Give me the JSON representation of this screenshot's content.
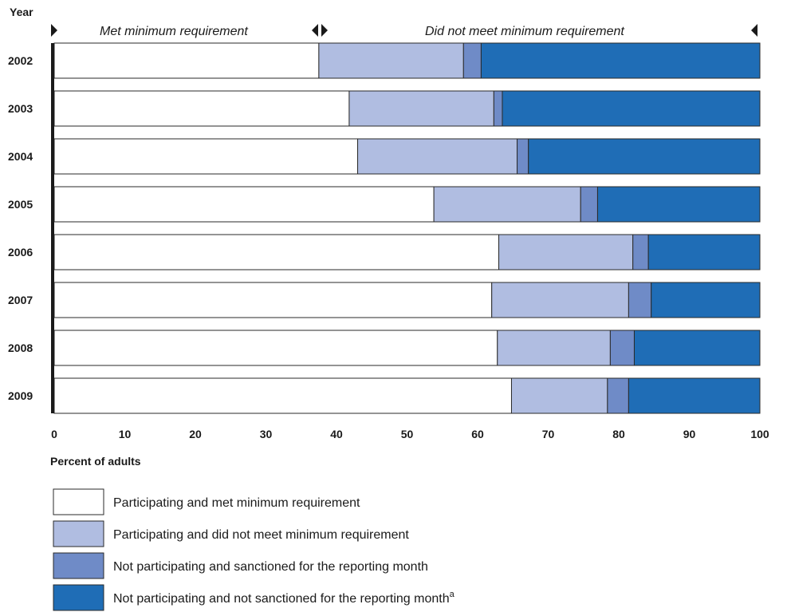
{
  "chart_data": {
    "type": "bar",
    "orientation": "horizontal",
    "stacked": true,
    "y_axis_label": "Year",
    "xlabel": "Percent of adults",
    "xlim": [
      0,
      100
    ],
    "x_ticks": [
      "0",
      "10",
      "20",
      "30",
      "40",
      "50",
      "60",
      "70",
      "80",
      "90",
      "100"
    ],
    "categories": [
      "2002",
      "2003",
      "2004",
      "2005",
      "2006",
      "2007",
      "2008",
      "2009"
    ],
    "annotations": {
      "left": "Met minimum requirement",
      "right": "Did not meet minimum requirement"
    },
    "series": [
      {
        "name": "Participating and met minimum requirement",
        "color": "#ffffff",
        "values": [
          37.5,
          41.8,
          43.0,
          53.8,
          63.0,
          62.0,
          62.8,
          64.8
        ]
      },
      {
        "name": "Participating and did not meet minimum requirement",
        "color": "#b0bde1",
        "values": [
          20.5,
          20.5,
          22.6,
          20.8,
          19.0,
          19.4,
          16.0,
          13.6
        ]
      },
      {
        "name": "Not participating and sanctioned for the reporting month",
        "color": "#6f8bc7",
        "values": [
          2.5,
          1.2,
          1.6,
          2.4,
          2.2,
          3.2,
          3.4,
          3.0
        ]
      },
      {
        "name": "Not participating and not sanctioned for the reporting month",
        "superscript": "a",
        "color": "#1f6db6",
        "values": [
          39.5,
          36.5,
          32.8,
          23.0,
          15.8,
          15.4,
          17.8,
          18.6
        ]
      }
    ],
    "legend_position": "bottom",
    "grid": false
  }
}
